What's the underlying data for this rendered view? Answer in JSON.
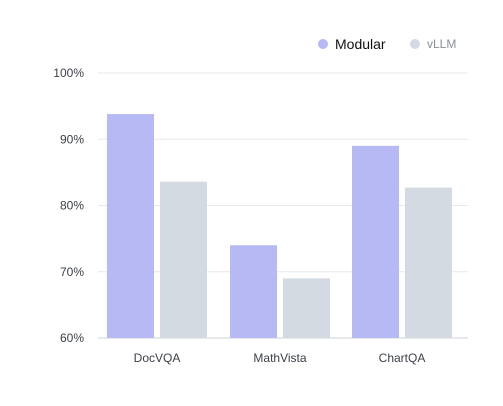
{
  "chart_data": {
    "type": "bar",
    "categories": [
      "DocVQA",
      "MathVista",
      "ChartQA"
    ],
    "series": [
      {
        "name": "Modular",
        "color": "#b7b9f5",
        "values": [
          93.8,
          74.0,
          89.0
        ]
      },
      {
        "name": "vLLM",
        "color": "#d4dae2",
        "values": [
          83.6,
          69.0,
          82.7
        ]
      }
    ],
    "yticks": [
      "60%",
      "70%",
      "80%",
      "90%",
      "100%"
    ],
    "ylim": [
      60,
      100
    ],
    "grid": true,
    "legend_position": "top-right",
    "title": "",
    "xlabel": "",
    "ylabel": ""
  }
}
